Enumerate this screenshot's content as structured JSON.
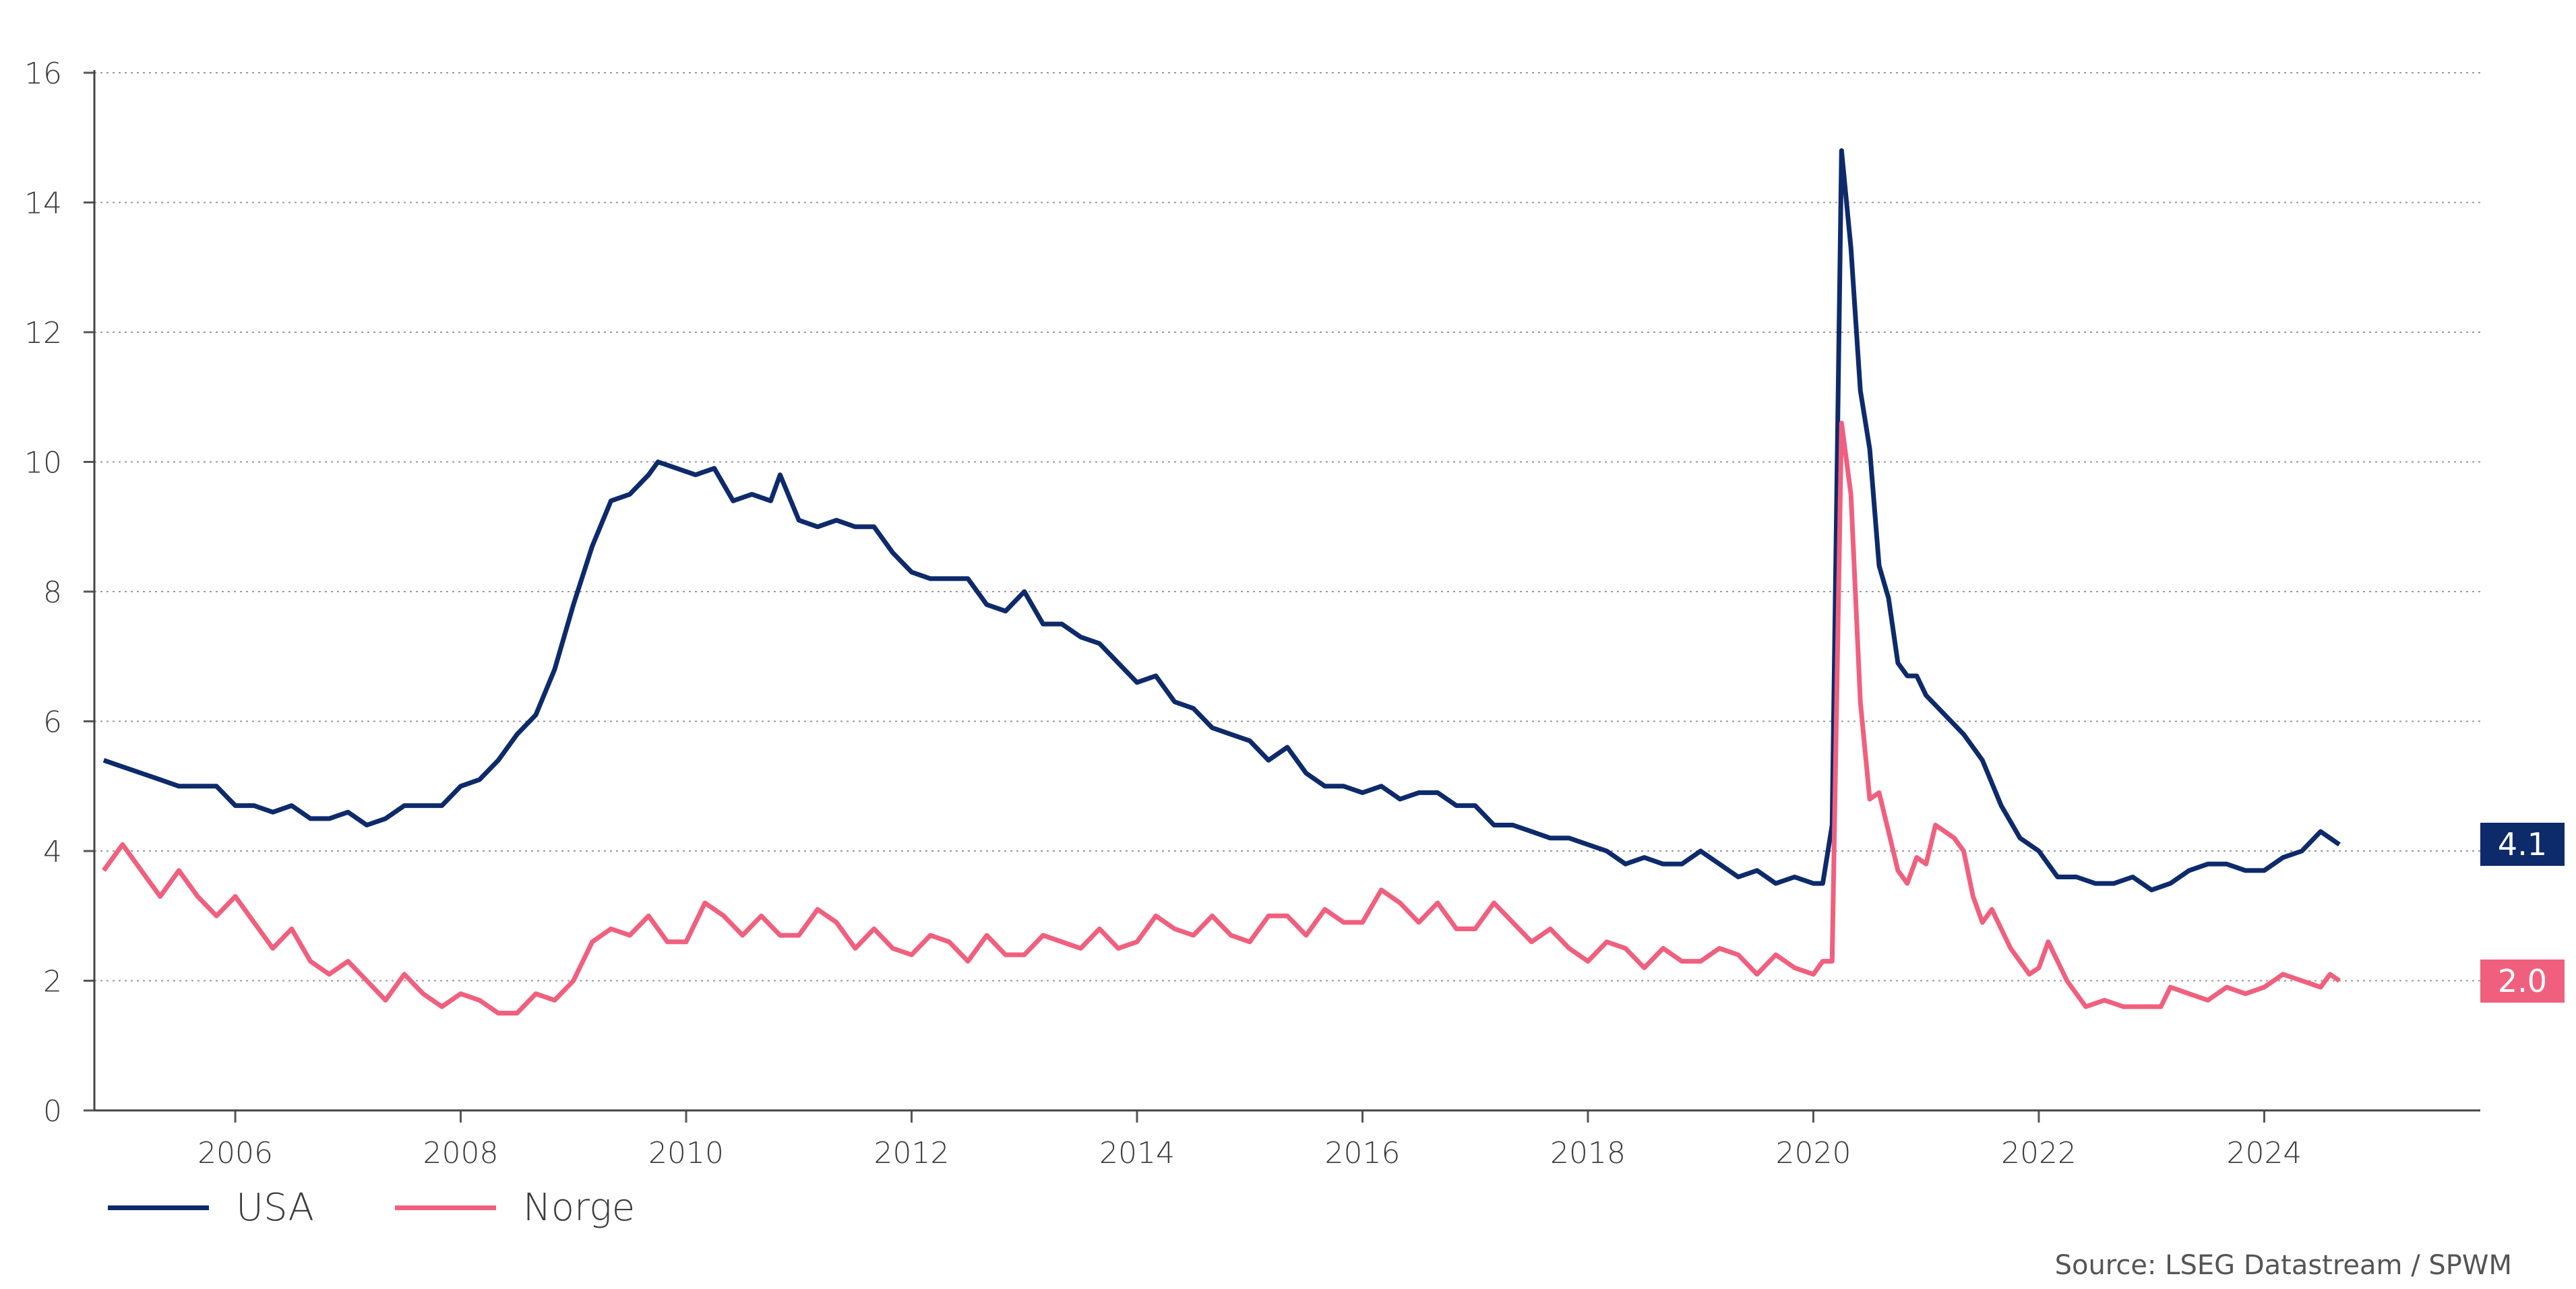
{
  "chart_data": {
    "type": "line",
    "title": "",
    "xlabel": "",
    "ylabel": "",
    "ylim": [
      0,
      16
    ],
    "yticks": [
      0,
      2,
      4,
      6,
      8,
      10,
      12,
      14,
      16
    ],
    "xticks": [
      "2006",
      "2008",
      "2010",
      "2012",
      "2014",
      "2016",
      "2018",
      "2020",
      "2022",
      "2024"
    ],
    "xlim": [
      "2004-10",
      "2025-12"
    ],
    "grid": true,
    "legend_position": "bottom-left",
    "source": "Source: LSEG Datastream / SPWM",
    "colors": {
      "usa": "#0d2a6b",
      "norge": "#f0607e"
    },
    "series": [
      {
        "name": "USA",
        "end_label": "4.1",
        "points": [
          [
            "2004-11",
            5.4
          ],
          [
            "2005-01",
            5.3
          ],
          [
            "2005-03",
            5.2
          ],
          [
            "2005-05",
            5.1
          ],
          [
            "2005-07",
            5.0
          ],
          [
            "2005-09",
            5.0
          ],
          [
            "2005-11",
            5.0
          ],
          [
            "2006-01",
            4.7
          ],
          [
            "2006-03",
            4.7
          ],
          [
            "2006-05",
            4.6
          ],
          [
            "2006-07",
            4.7
          ],
          [
            "2006-09",
            4.5
          ],
          [
            "2006-11",
            4.5
          ],
          [
            "2007-01",
            4.6
          ],
          [
            "2007-03",
            4.4
          ],
          [
            "2007-05",
            4.5
          ],
          [
            "2007-07",
            4.7
          ],
          [
            "2007-09",
            4.7
          ],
          [
            "2007-11",
            4.7
          ],
          [
            "2008-01",
            5.0
          ],
          [
            "2008-03",
            5.1
          ],
          [
            "2008-05",
            5.4
          ],
          [
            "2008-07",
            5.8
          ],
          [
            "2008-09",
            6.1
          ],
          [
            "2008-11",
            6.8
          ],
          [
            "2009-01",
            7.8
          ],
          [
            "2009-03",
            8.7
          ],
          [
            "2009-05",
            9.4
          ],
          [
            "2009-07",
            9.5
          ],
          [
            "2009-09",
            9.8
          ],
          [
            "2009-10",
            10.0
          ],
          [
            "2009-12",
            9.9
          ],
          [
            "2010-02",
            9.8
          ],
          [
            "2010-04",
            9.9
          ],
          [
            "2010-06",
            9.4
          ],
          [
            "2010-08",
            9.5
          ],
          [
            "2010-10",
            9.4
          ],
          [
            "2010-11",
            9.8
          ],
          [
            "2011-01",
            9.1
          ],
          [
            "2011-03",
            9.0
          ],
          [
            "2011-05",
            9.1
          ],
          [
            "2011-07",
            9.0
          ],
          [
            "2011-09",
            9.0
          ],
          [
            "2011-11",
            8.6
          ],
          [
            "2012-01",
            8.3
          ],
          [
            "2012-03",
            8.2
          ],
          [
            "2012-05",
            8.2
          ],
          [
            "2012-07",
            8.2
          ],
          [
            "2012-09",
            7.8
          ],
          [
            "2012-11",
            7.7
          ],
          [
            "2013-01",
            8.0
          ],
          [
            "2013-03",
            7.5
          ],
          [
            "2013-05",
            7.5
          ],
          [
            "2013-07",
            7.3
          ],
          [
            "2013-09",
            7.2
          ],
          [
            "2013-11",
            6.9
          ],
          [
            "2014-01",
            6.6
          ],
          [
            "2014-03",
            6.7
          ],
          [
            "2014-05",
            6.3
          ],
          [
            "2014-07",
            6.2
          ],
          [
            "2014-09",
            5.9
          ],
          [
            "2014-11",
            5.8
          ],
          [
            "2015-01",
            5.7
          ],
          [
            "2015-03",
            5.4
          ],
          [
            "2015-05",
            5.6
          ],
          [
            "2015-07",
            5.2
          ],
          [
            "2015-09",
            5.0
          ],
          [
            "2015-11",
            5.0
          ],
          [
            "2016-01",
            4.9
          ],
          [
            "2016-03",
            5.0
          ],
          [
            "2016-05",
            4.8
          ],
          [
            "2016-07",
            4.9
          ],
          [
            "2016-09",
            4.9
          ],
          [
            "2016-11",
            4.7
          ],
          [
            "2017-01",
            4.7
          ],
          [
            "2017-03",
            4.4
          ],
          [
            "2017-05",
            4.4
          ],
          [
            "2017-07",
            4.3
          ],
          [
            "2017-09",
            4.2
          ],
          [
            "2017-11",
            4.2
          ],
          [
            "2018-01",
            4.1
          ],
          [
            "2018-03",
            4.0
          ],
          [
            "2018-05",
            3.8
          ],
          [
            "2018-07",
            3.9
          ],
          [
            "2018-09",
            3.8
          ],
          [
            "2018-11",
            3.8
          ],
          [
            "2019-01",
            4.0
          ],
          [
            "2019-03",
            3.8
          ],
          [
            "2019-05",
            3.6
          ],
          [
            "2019-07",
            3.7
          ],
          [
            "2019-09",
            3.5
          ],
          [
            "2019-11",
            3.6
          ],
          [
            "2020-01",
            3.5
          ],
          [
            "2020-02",
            3.5
          ],
          [
            "2020-03",
            4.4
          ],
          [
            "2020-04",
            14.8
          ],
          [
            "2020-05",
            13.3
          ],
          [
            "2020-06",
            11.1
          ],
          [
            "2020-07",
            10.2
          ],
          [
            "2020-08",
            8.4
          ],
          [
            "2020-09",
            7.9
          ],
          [
            "2020-10",
            6.9
          ],
          [
            "2020-11",
            6.7
          ],
          [
            "2020-12",
            6.7
          ],
          [
            "2021-01",
            6.4
          ],
          [
            "2021-03",
            6.1
          ],
          [
            "2021-05",
            5.8
          ],
          [
            "2021-07",
            5.4
          ],
          [
            "2021-09",
            4.7
          ],
          [
            "2021-11",
            4.2
          ],
          [
            "2022-01",
            4.0
          ],
          [
            "2022-03",
            3.6
          ],
          [
            "2022-05",
            3.6
          ],
          [
            "2022-07",
            3.5
          ],
          [
            "2022-09",
            3.5
          ],
          [
            "2022-11",
            3.6
          ],
          [
            "2023-01",
            3.4
          ],
          [
            "2023-03",
            3.5
          ],
          [
            "2023-05",
            3.7
          ],
          [
            "2023-07",
            3.8
          ],
          [
            "2023-09",
            3.8
          ],
          [
            "2023-11",
            3.7
          ],
          [
            "2024-01",
            3.7
          ],
          [
            "2024-03",
            3.9
          ],
          [
            "2024-05",
            4.0
          ],
          [
            "2024-07",
            4.3
          ],
          [
            "2024-09",
            4.1
          ]
        ]
      },
      {
        "name": "Norge",
        "end_label": "2.0",
        "points": [
          [
            "2004-11",
            3.7
          ],
          [
            "2005-01",
            4.1
          ],
          [
            "2005-03",
            3.7
          ],
          [
            "2005-05",
            3.3
          ],
          [
            "2005-07",
            3.7
          ],
          [
            "2005-09",
            3.3
          ],
          [
            "2005-11",
            3.0
          ],
          [
            "2006-01",
            3.3
          ],
          [
            "2006-03",
            2.9
          ],
          [
            "2006-05",
            2.5
          ],
          [
            "2006-07",
            2.8
          ],
          [
            "2006-09",
            2.3
          ],
          [
            "2006-11",
            2.1
          ],
          [
            "2007-01",
            2.3
          ],
          [
            "2007-03",
            2.0
          ],
          [
            "2007-05",
            1.7
          ],
          [
            "2007-07",
            2.1
          ],
          [
            "2007-09",
            1.8
          ],
          [
            "2007-11",
            1.6
          ],
          [
            "2008-01",
            1.8
          ],
          [
            "2008-03",
            1.7
          ],
          [
            "2008-05",
            1.5
          ],
          [
            "2008-07",
            1.5
          ],
          [
            "2008-09",
            1.8
          ],
          [
            "2008-11",
            1.7
          ],
          [
            "2009-01",
            2.0
          ],
          [
            "2009-03",
            2.6
          ],
          [
            "2009-05",
            2.8
          ],
          [
            "2009-07",
            2.7
          ],
          [
            "2009-09",
            3.0
          ],
          [
            "2009-11",
            2.6
          ],
          [
            "2010-01",
            2.6
          ],
          [
            "2010-03",
            3.2
          ],
          [
            "2010-05",
            3.0
          ],
          [
            "2010-07",
            2.7
          ],
          [
            "2010-09",
            3.0
          ],
          [
            "2010-11",
            2.7
          ],
          [
            "2011-01",
            2.7
          ],
          [
            "2011-03",
            3.1
          ],
          [
            "2011-05",
            2.9
          ],
          [
            "2011-07",
            2.5
          ],
          [
            "2011-09",
            2.8
          ],
          [
            "2011-11",
            2.5
          ],
          [
            "2012-01",
            2.4
          ],
          [
            "2012-03",
            2.7
          ],
          [
            "2012-05",
            2.6
          ],
          [
            "2012-07",
            2.3
          ],
          [
            "2012-09",
            2.7
          ],
          [
            "2012-11",
            2.4
          ],
          [
            "2013-01",
            2.4
          ],
          [
            "2013-03",
            2.7
          ],
          [
            "2013-05",
            2.6
          ],
          [
            "2013-07",
            2.5
          ],
          [
            "2013-09",
            2.8
          ],
          [
            "2013-11",
            2.5
          ],
          [
            "2014-01",
            2.6
          ],
          [
            "2014-03",
            3.0
          ],
          [
            "2014-05",
            2.8
          ],
          [
            "2014-07",
            2.7
          ],
          [
            "2014-09",
            3.0
          ],
          [
            "2014-11",
            2.7
          ],
          [
            "2015-01",
            2.6
          ],
          [
            "2015-03",
            3.0
          ],
          [
            "2015-05",
            3.0
          ],
          [
            "2015-07",
            2.7
          ],
          [
            "2015-09",
            3.1
          ],
          [
            "2015-11",
            2.9
          ],
          [
            "2016-01",
            2.9
          ],
          [
            "2016-03",
            3.4
          ],
          [
            "2016-05",
            3.2
          ],
          [
            "2016-07",
            2.9
          ],
          [
            "2016-09",
            3.2
          ],
          [
            "2016-11",
            2.8
          ],
          [
            "2017-01",
            2.8
          ],
          [
            "2017-03",
            3.2
          ],
          [
            "2017-05",
            2.9
          ],
          [
            "2017-07",
            2.6
          ],
          [
            "2017-09",
            2.8
          ],
          [
            "2017-11",
            2.5
          ],
          [
            "2018-01",
            2.3
          ],
          [
            "2018-03",
            2.6
          ],
          [
            "2018-05",
            2.5
          ],
          [
            "2018-07",
            2.2
          ],
          [
            "2018-09",
            2.5
          ],
          [
            "2018-11",
            2.3
          ],
          [
            "2019-01",
            2.3
          ],
          [
            "2019-03",
            2.5
          ],
          [
            "2019-05",
            2.4
          ],
          [
            "2019-07",
            2.1
          ],
          [
            "2019-09",
            2.4
          ],
          [
            "2019-11",
            2.2
          ],
          [
            "2020-01",
            2.1
          ],
          [
            "2020-02",
            2.3
          ],
          [
            "2020-03",
            2.3
          ],
          [
            "2020-04",
            10.6
          ],
          [
            "2020-05",
            9.5
          ],
          [
            "2020-06",
            6.3
          ],
          [
            "2020-07",
            4.8
          ],
          [
            "2020-08",
            4.9
          ],
          [
            "2020-09",
            4.3
          ],
          [
            "2020-10",
            3.7
          ],
          [
            "2020-11",
            3.5
          ],
          [
            "2020-12",
            3.9
          ],
          [
            "2021-01",
            3.8
          ],
          [
            "2021-02",
            4.4
          ],
          [
            "2021-04",
            4.2
          ],
          [
            "2021-05",
            4.0
          ],
          [
            "2021-06",
            3.3
          ],
          [
            "2021-07",
            2.9
          ],
          [
            "2021-08",
            3.1
          ],
          [
            "2021-10",
            2.5
          ],
          [
            "2021-12",
            2.1
          ],
          [
            "2022-01",
            2.2
          ],
          [
            "2022-02",
            2.6
          ],
          [
            "2022-04",
            2.0
          ],
          [
            "2022-06",
            1.6
          ],
          [
            "2022-08",
            1.7
          ],
          [
            "2022-10",
            1.6
          ],
          [
            "2022-12",
            1.6
          ],
          [
            "2023-02",
            1.6
          ],
          [
            "2023-03",
            1.9
          ],
          [
            "2023-05",
            1.8
          ],
          [
            "2023-07",
            1.7
          ],
          [
            "2023-09",
            1.9
          ],
          [
            "2023-11",
            1.8
          ],
          [
            "2024-01",
            1.9
          ],
          [
            "2024-03",
            2.1
          ],
          [
            "2024-05",
            2.0
          ],
          [
            "2024-07",
            1.9
          ],
          [
            "2024-08",
            2.1
          ],
          [
            "2024-09",
            2.0
          ]
        ]
      }
    ]
  }
}
